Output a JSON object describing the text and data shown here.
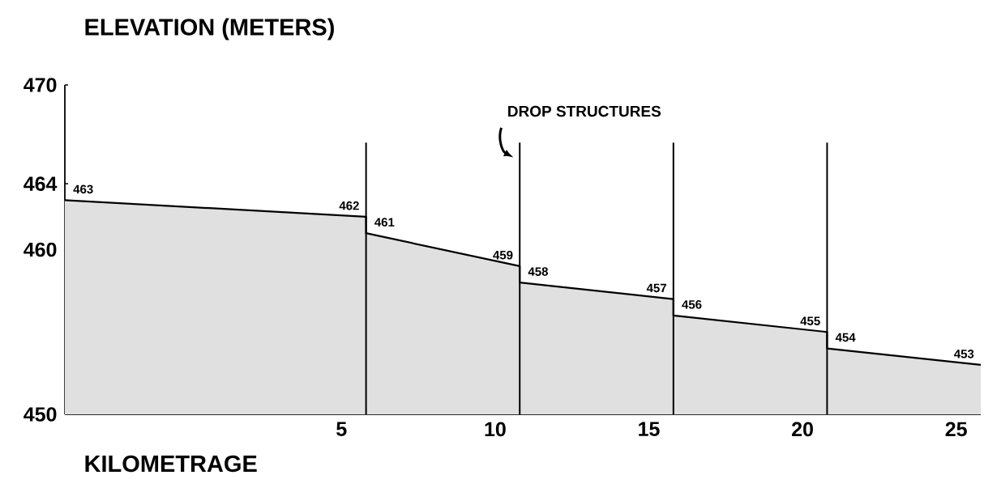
{
  "chart_data": {
    "type": "area",
    "ylabel": "ELEVATION (METERS)",
    "xlabel": "KILOMETRAGE",
    "annotations": [
      {
        "text": "DROP STRUCTURES",
        "x": 10.8,
        "y": 466
      }
    ],
    "x": [
      -4,
      5.8,
      5.8,
      10.8,
      10.8,
      15.8,
      15.8,
      20.8,
      20.8,
      25.8
    ],
    "values": [
      463,
      462,
      461,
      459,
      458,
      457,
      456,
      455,
      454,
      453
    ],
    "color": "#000000",
    "data_labels": true,
    "xlim": [
      -4,
      25.8
    ],
    "ylim": [
      450,
      470
    ],
    "xticks": [
      5,
      10,
      15,
      20,
      25
    ],
    "yticks": [
      450,
      460,
      464,
      470
    ],
    "ref_lines": [
      {
        "axis": "x",
        "value": 5.8
      },
      {
        "axis": "x",
        "value": 10.8
      },
      {
        "axis": "x",
        "value": 15.8
      },
      {
        "axis": "x",
        "value": 20.8
      }
    ],
    "grid": false,
    "marker": "none"
  }
}
